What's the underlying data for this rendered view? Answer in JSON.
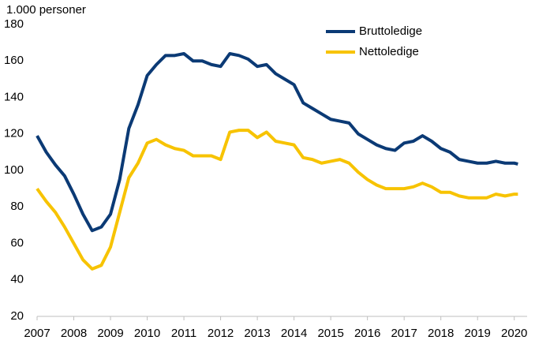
{
  "chart_data": {
    "type": "line",
    "y_label": "1.000 personer",
    "x": [
      2007.0,
      2007.25,
      2007.5,
      2007.75,
      2008.0,
      2008.25,
      2008.5,
      2008.75,
      2009.0,
      2009.25,
      2009.5,
      2009.75,
      2010.0,
      2010.25,
      2010.5,
      2010.75,
      2011.0,
      2011.25,
      2011.5,
      2011.75,
      2012.0,
      2012.25,
      2012.5,
      2012.75,
      2013.0,
      2013.25,
      2013.5,
      2013.75,
      2014.0,
      2014.25,
      2014.5,
      2014.75,
      2015.0,
      2015.25,
      2015.5,
      2015.75,
      2016.0,
      2016.25,
      2016.5,
      2016.75,
      2017.0,
      2017.25,
      2017.5,
      2017.75,
      2018.0,
      2018.25,
      2018.5,
      2018.75,
      2019.0,
      2019.25,
      2019.5,
      2019.75,
      2020.0,
      2020.1
    ],
    "series": [
      {
        "name": "Bruttoledige",
        "color": "#0b3a75",
        "values": [
          119,
          110,
          103,
          97,
          87,
          76,
          67,
          69,
          76,
          95,
          123,
          136,
          152,
          158,
          163,
          163,
          164,
          160,
          160,
          158,
          157,
          164,
          163,
          161,
          157,
          158,
          153,
          150,
          147,
          137,
          134,
          131,
          128,
          127,
          126,
          120,
          117,
          114,
          112,
          111,
          115,
          116,
          119,
          116,
          112,
          110,
          106,
          105,
          104,
          104,
          105,
          104,
          104,
          103.5
        ]
      },
      {
        "name": "Nettoledige",
        "color": "#f7c300",
        "values": [
          90,
          83,
          77,
          69,
          60,
          51,
          46,
          48,
          58,
          77,
          96,
          104,
          115,
          117,
          114,
          112,
          111,
          108,
          108,
          108,
          106,
          121,
          122,
          122,
          118,
          121,
          116,
          115,
          114,
          107,
          106,
          104,
          105,
          106,
          104,
          99,
          95,
          92,
          90,
          90,
          90,
          91,
          93,
          91,
          88,
          88,
          86,
          85,
          85,
          85,
          87,
          86,
          87,
          87
        ]
      }
    ],
    "xlim": [
      2007,
      2020.35
    ],
    "xticks": [
      2007,
      2008,
      2009,
      2010,
      2011,
      2012,
      2013,
      2014,
      2015,
      2016,
      2017,
      2018,
      2019,
      2020
    ],
    "ylim": [
      20,
      180
    ],
    "yticks": [
      20,
      40,
      60,
      80,
      100,
      120,
      140,
      160,
      180
    ],
    "grid": false
  }
}
